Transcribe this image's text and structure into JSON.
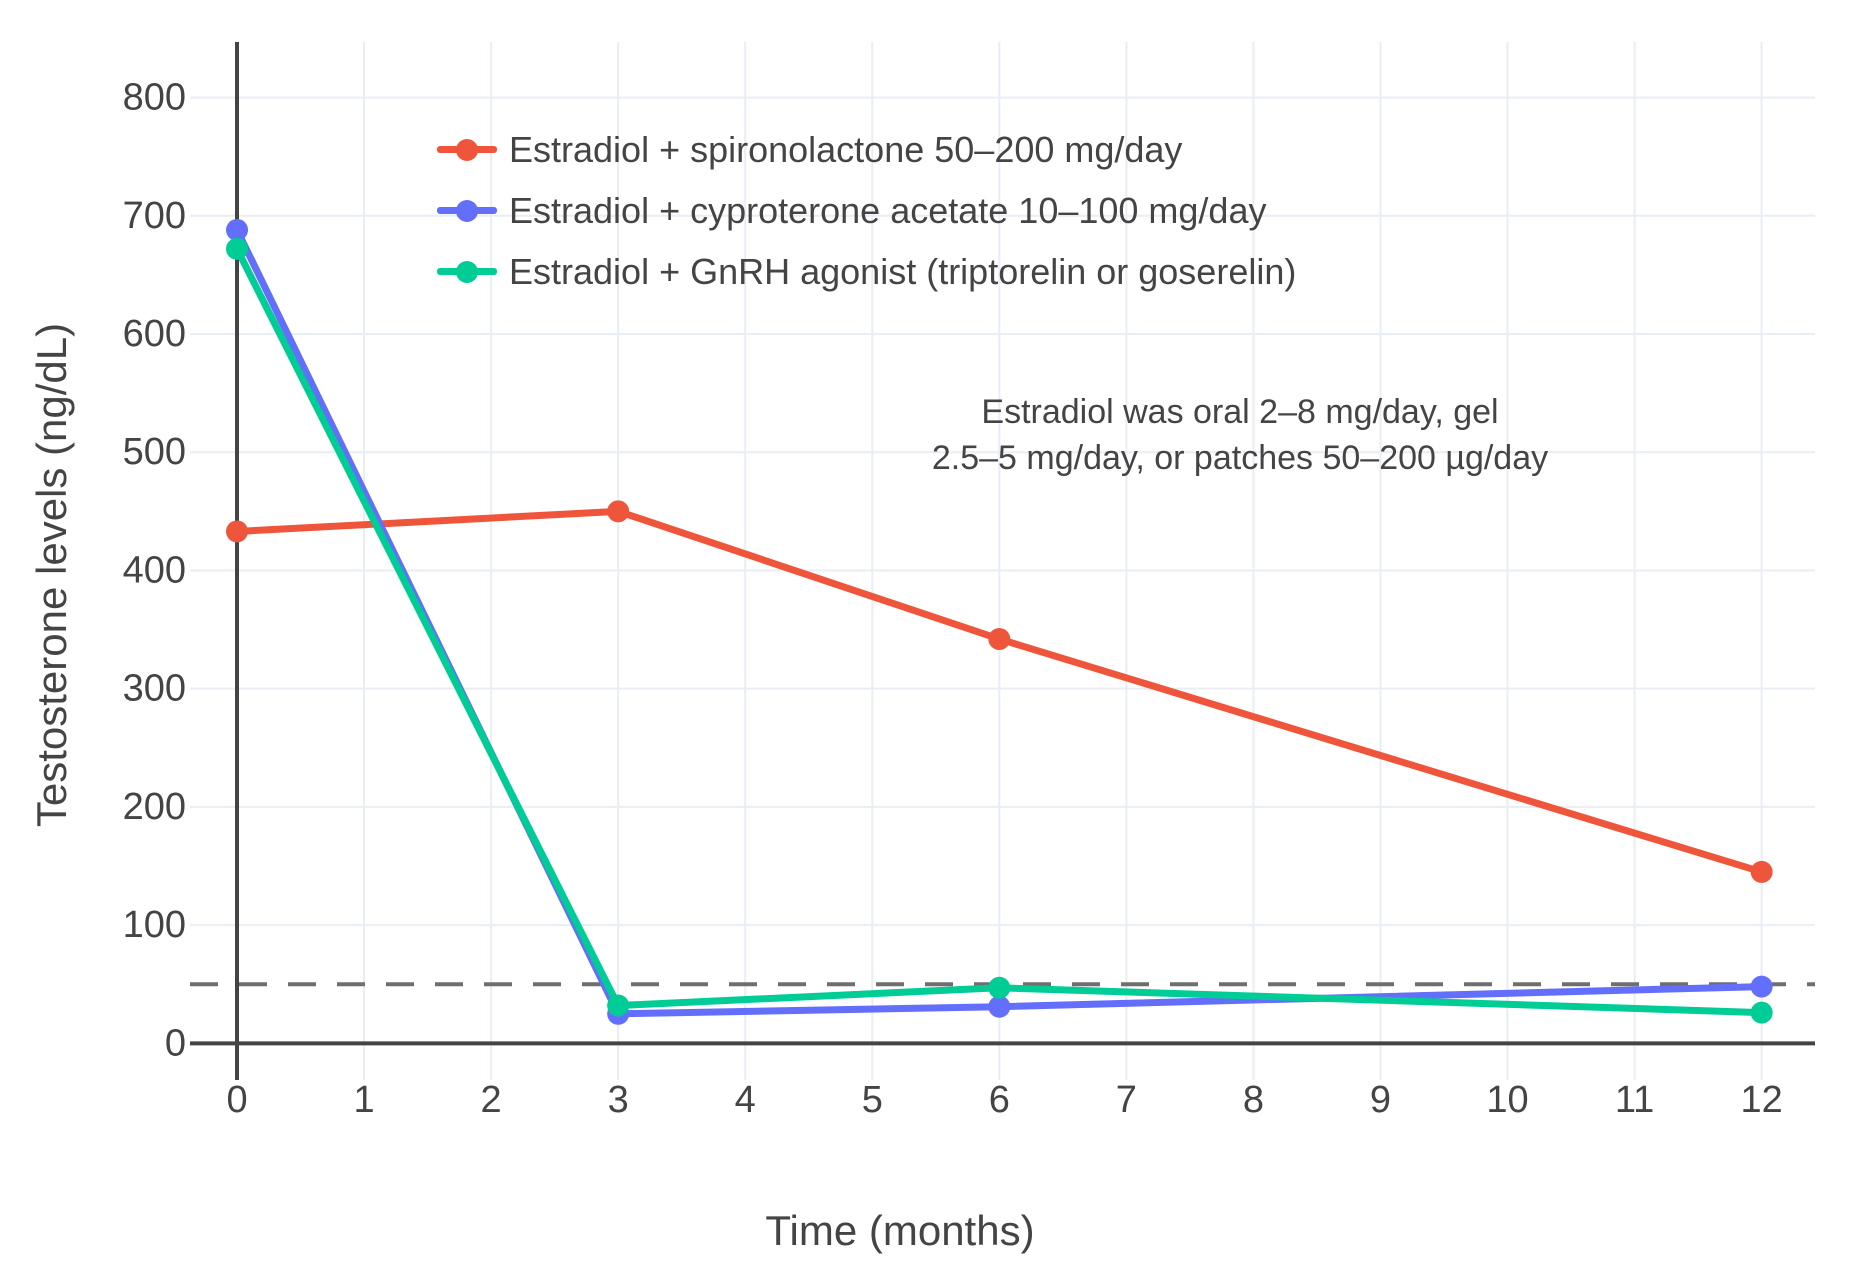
{
  "chart_data": {
    "type": "line",
    "xlabel": "Time (months)",
    "ylabel": "Testosterone levels (ng/dL)",
    "x_ticks": [
      0,
      1,
      2,
      3,
      4,
      5,
      6,
      7,
      8,
      9,
      10,
      11,
      12
    ],
    "y_ticks": [
      0,
      100,
      200,
      300,
      400,
      500,
      600,
      700,
      800
    ],
    "xlim": [
      -0.37,
      12.42
    ],
    "ylim": [
      -31,
      847
    ],
    "grid": true,
    "legend_position": "inside-top-left",
    "series": [
      {
        "name": "Estradiol + spironolactone 50–200 mg/day",
        "color": "#EF553B",
        "x": [
          0,
          3,
          6,
          12
        ],
        "y": [
          433,
          450,
          342,
          145
        ]
      },
      {
        "name": "Estradiol + cyproterone acetate 10–100 mg/day",
        "color": "#636EFA",
        "x": [
          0,
          3,
          6,
          12
        ],
        "y": [
          688,
          25,
          31,
          48
        ]
      },
      {
        "name": "Estradiol + GnRH agonist (triptorelin or goserelin)",
        "color": "#00CC96",
        "x": [
          0,
          3,
          6,
          12
        ],
        "y": [
          672,
          32,
          47,
          26
        ]
      }
    ],
    "threshold_line": {
      "value": 50,
      "style": "dashed",
      "color": "#6e6e6e"
    },
    "annotation": {
      "line1": "Estradiol was oral 2–8 mg/day, gel",
      "line2": "2.5–5 mg/day, or patches 50–200 µg/day"
    },
    "colors": {
      "grid": "#e9edf4",
      "axis": "#444444",
      "text": "#444444",
      "background": "#ffffff"
    }
  }
}
